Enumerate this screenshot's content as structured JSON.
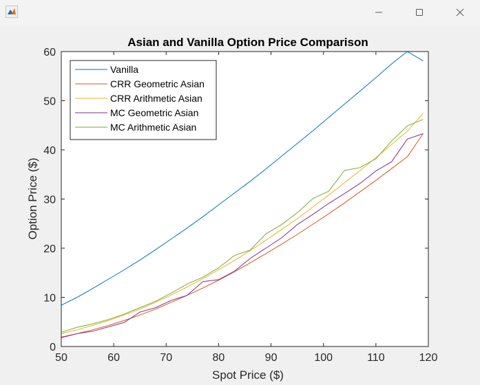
{
  "window": {
    "icon": "matlab-figure-icon",
    "controls": [
      "minimize-icon",
      "maximize-icon",
      "close-icon"
    ]
  },
  "chart_data": {
    "type": "line",
    "title": "Asian and Vanilla Option Price Comparison",
    "xlabel": "Spot Price ($)",
    "ylabel": "Option Price ($)",
    "xlim": [
      50,
      120
    ],
    "ylim": [
      0,
      60
    ],
    "xticks": [
      "50",
      "60",
      "70",
      "80",
      "90",
      "100",
      "110",
      "120"
    ],
    "yticks": [
      "0",
      "10",
      "20",
      "30",
      "40",
      "50",
      "60"
    ],
    "grid": false,
    "legend_position": "top-left",
    "series": [
      {
        "name": "Vanilla",
        "color": "#0072BD",
        "x": [
          50,
          53,
          56,
          59,
          62,
          65,
          68,
          71,
          74,
          77,
          80,
          83,
          86,
          89,
          92,
          95,
          98,
          101,
          104,
          107,
          110,
          113,
          116,
          119
        ],
        "y": [
          8.4,
          10.0,
          11.8,
          13.7,
          15.6,
          17.6,
          19.7,
          21.9,
          24.1,
          26.4,
          28.8,
          31.2,
          33.6,
          36.1,
          38.7,
          41.3,
          43.9,
          46.6,
          49.3,
          52.0,
          54.7,
          57.5,
          60.3,
          58.1
        ]
      },
      {
        "name": "CRR Geometric Asian",
        "color": "#D95319",
        "x": [
          50,
          53,
          56,
          59,
          62,
          65,
          68,
          71,
          74,
          77,
          80,
          83,
          86,
          89,
          92,
          95,
          98,
          101,
          104,
          107,
          110,
          113,
          116,
          119
        ],
        "y": [
          1.9,
          2.6,
          3.4,
          4.3,
          5.3,
          6.4,
          7.6,
          9.0,
          10.4,
          11.9,
          13.5,
          15.2,
          17.0,
          18.9,
          20.8,
          22.8,
          24.9,
          27.0,
          29.2,
          31.5,
          33.8,
          36.2,
          38.6,
          43.3
        ]
      },
      {
        "name": "CRR Arithmetic Asian",
        "color": "#EDB120",
        "x": [
          50,
          53,
          56,
          59,
          62,
          65,
          68,
          71,
          74,
          77,
          80,
          83,
          86,
          89,
          92,
          95,
          98,
          101,
          104,
          107,
          110,
          113,
          116,
          119
        ],
        "y": [
          2.6,
          3.4,
          4.3,
          5.3,
          6.4,
          7.6,
          9.0,
          10.5,
          12.1,
          13.8,
          15.6,
          17.5,
          19.5,
          21.6,
          23.8,
          26.0,
          28.4,
          30.8,
          33.3,
          35.8,
          38.4,
          41.1,
          43.8,
          47.4
        ]
      },
      {
        "name": "MC Geometric Asian",
        "color": "#7E2F8E",
        "x": [
          50,
          53,
          56,
          59,
          62,
          65,
          68,
          71,
          74,
          77,
          80,
          83,
          86,
          89,
          92,
          95,
          98,
          101,
          104,
          107,
          110,
          113,
          116,
          119
        ],
        "y": [
          1.8,
          2.6,
          3.1,
          4.0,
          4.9,
          7.0,
          7.9,
          9.4,
          10.4,
          13.2,
          13.6,
          15.3,
          17.9,
          20.0,
          22.1,
          24.8,
          26.9,
          29.1,
          31.1,
          33.2,
          35.7,
          37.6,
          42.2,
          43.3
        ]
      },
      {
        "name": "MC Arithmetic Asian",
        "color": "#77AC30",
        "x": [
          50,
          53,
          56,
          59,
          62,
          65,
          68,
          71,
          74,
          77,
          80,
          83,
          86,
          89,
          92,
          95,
          98,
          101,
          104,
          107,
          110,
          113,
          116,
          119
        ],
        "y": [
          2.9,
          3.9,
          4.6,
          5.5,
          6.6,
          7.9,
          9.2,
          10.9,
          12.7,
          14.1,
          16.0,
          18.5,
          19.6,
          22.9,
          24.8,
          27.2,
          30.1,
          31.6,
          35.8,
          36.4,
          38.2,
          41.8,
          44.9,
          46.2
        ]
      }
    ]
  }
}
